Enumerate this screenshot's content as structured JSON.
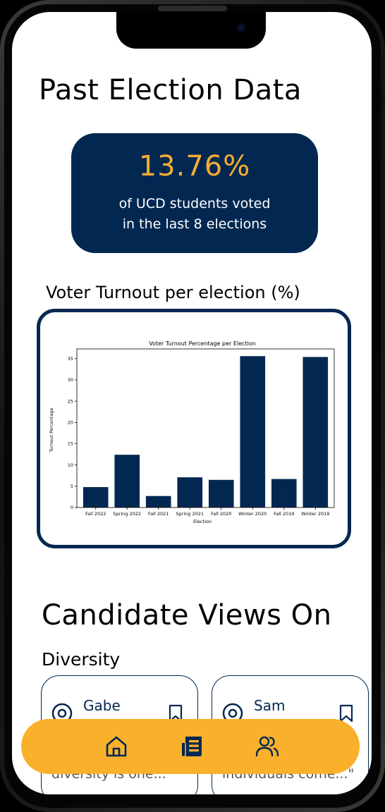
{
  "page": {
    "title": "Past Election Data"
  },
  "turnout_summary": {
    "percentage": "13.76%",
    "caption": "of UCD students voted\nin the last 8 elections"
  },
  "chart_section": {
    "heading": "Voter Turnout per election (%)"
  },
  "chart_data": {
    "type": "bar",
    "title": "Voter Turnout Percentage per Election",
    "xlabel": "Election",
    "ylabel": "Turnout Percentage",
    "categories": [
      "Fall 2022",
      "Spring 2022",
      "Fall 2021",
      "Spring 2021",
      "Fall 2020",
      "Winter 2020",
      "Fall 2019",
      "Winter 2019"
    ],
    "values": [
      4.8,
      12.4,
      2.7,
      7.1,
      6.5,
      35.6,
      6.7,
      35.4
    ],
    "ylim": [
      0,
      37.3
    ],
    "yticks": [
      0,
      5,
      10,
      15,
      20,
      25,
      30,
      35
    ],
    "bar_color": "#022852"
  },
  "candidate_views": {
    "heading": "Candidate Views On",
    "topic": "Diversity",
    "cards": [
      {
        "name": "Gabe",
        "quote": "diversity is one...\""
      },
      {
        "name": "Sam",
        "quote": "individuals come...\""
      }
    ]
  },
  "nav": {
    "items": [
      {
        "icon": "home-icon"
      },
      {
        "icon": "newspaper-icon"
      },
      {
        "icon": "people-icon"
      }
    ]
  },
  "colors": {
    "navy": "#022852",
    "accent": "#f7ad32",
    "nav_background": "#f9b02b"
  }
}
